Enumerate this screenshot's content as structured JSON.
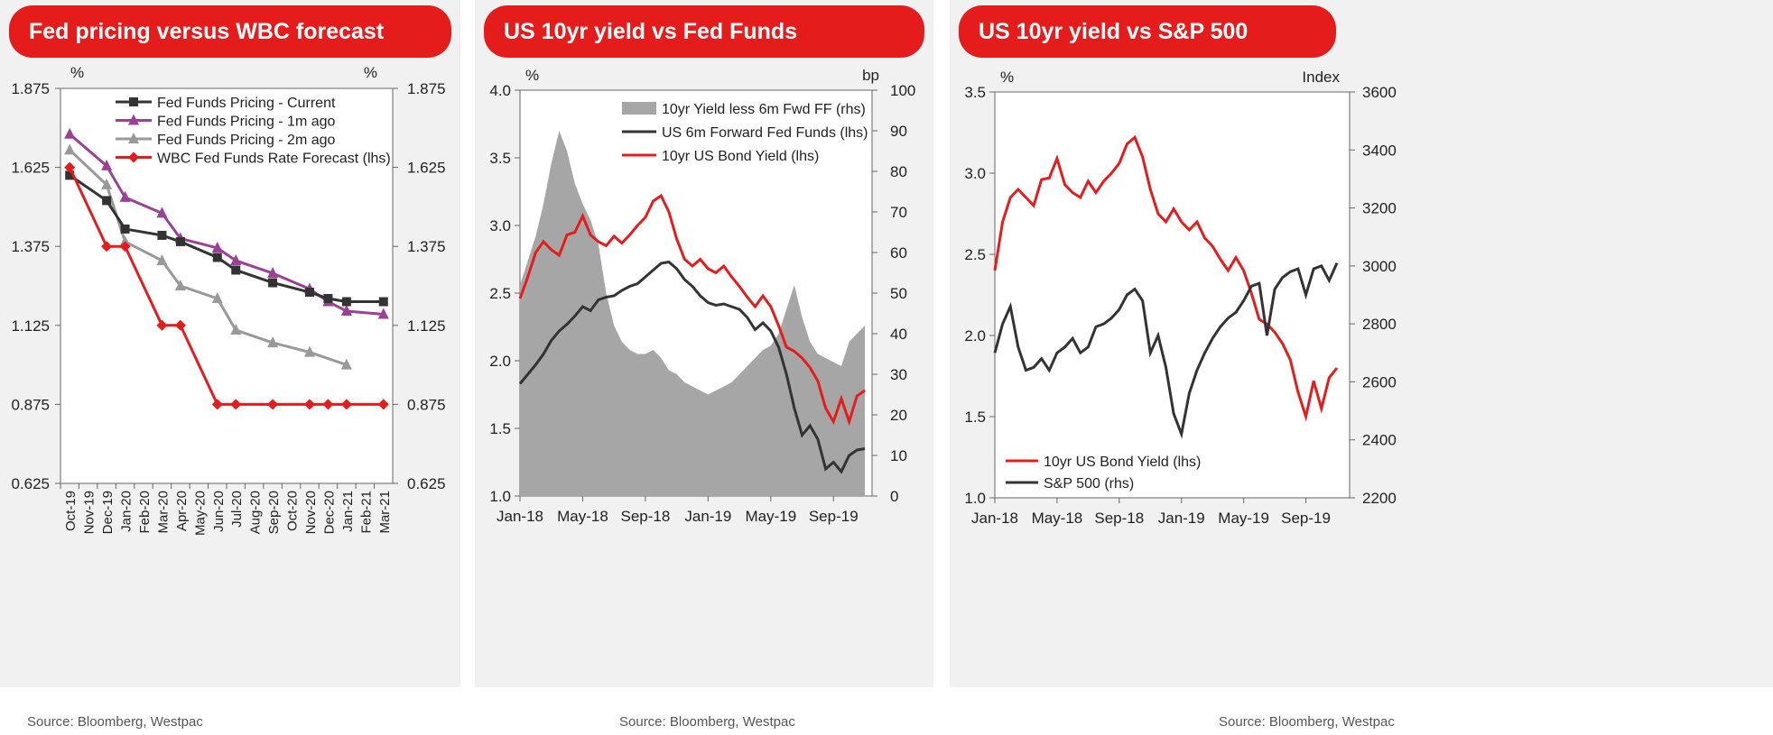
{
  "colors": {
    "header": "#e41c1c",
    "black": "#333333",
    "purple": "#9b4193",
    "grey": "#999999",
    "red": "#e41c1c",
    "area": "#a6a6a6",
    "panel_bg": "#f1f1f1"
  },
  "chart_data": [
    {
      "type": "line",
      "title": "Fed pricing versus WBC forecast",
      "source": "Source: Bloomberg, Westpac",
      "left_unit": "%",
      "right_unit": "%",
      "ylim": [
        0.625,
        1.875
      ],
      "y_ticks": [
        "1.875",
        "1.625",
        "1.375",
        "1.125",
        "0.875",
        "0.625"
      ],
      "y_tick_values": [
        1.875,
        1.625,
        1.375,
        1.125,
        0.875,
        0.625
      ],
      "categories": [
        "Oct-19",
        "Nov-19",
        "Dec-19",
        "Jan-20",
        "Feb-20",
        "Mar-20",
        "Apr-20",
        "May-20",
        "Jun-20",
        "Jul-20",
        "Aug-20",
        "Sep-20",
        "Oct-20",
        "Nov-20",
        "Dec-20",
        "Jan-21",
        "Feb-21",
        "Mar-21"
      ],
      "series": [
        {
          "name": "Fed Funds Pricing - Current",
          "color": "#333333",
          "marker": "square",
          "x": [
            0,
            2,
            3,
            5,
            6,
            8,
            9,
            11,
            13,
            14,
            15,
            17
          ],
          "values": [
            1.6,
            1.52,
            1.43,
            1.41,
            1.39,
            1.34,
            1.3,
            1.26,
            1.23,
            1.21,
            1.2,
            1.2
          ]
        },
        {
          "name": "Fed Funds Pricing - 1m ago",
          "color": "#9b4193",
          "marker": "triangle",
          "x": [
            0,
            2,
            3,
            5,
            6,
            8,
            9,
            11,
            13,
            14,
            15,
            17
          ],
          "values": [
            1.73,
            1.63,
            1.53,
            1.48,
            1.4,
            1.37,
            1.33,
            1.29,
            1.24,
            1.2,
            1.17,
            1.16
          ]
        },
        {
          "name": "Fed Funds Pricing - 2m ago",
          "color": "#999999",
          "marker": "triangle",
          "x": [
            0,
            2,
            3,
            5,
            6,
            8,
            9,
            11,
            13,
            15
          ],
          "values": [
            1.68,
            1.57,
            1.39,
            1.33,
            1.25,
            1.21,
            1.11,
            1.07,
            1.04,
            1.0
          ]
        },
        {
          "name": "WBC Fed Funds Rate Forecast (lhs)",
          "color": "#e41c1c",
          "marker": "diamond",
          "x": [
            0,
            2,
            3,
            5,
            6,
            8,
            9,
            11,
            13,
            14,
            15,
            17
          ],
          "values": [
            1.625,
            1.375,
            1.375,
            1.125,
            1.125,
            0.875,
            0.875,
            0.875,
            0.875,
            0.875,
            0.875,
            0.875
          ]
        }
      ]
    },
    {
      "type": "line",
      "title": "US 10yr yield vs Fed Funds",
      "source": "Source: Bloomberg, Westpac",
      "left_unit": "%",
      "right_unit": "bp",
      "ylim": [
        1.0,
        4.0
      ],
      "y2lim": [
        0,
        100
      ],
      "y_ticks": [
        "4.0",
        "3.5",
        "3.0",
        "2.5",
        "2.0",
        "1.5",
        "1.0"
      ],
      "y2_ticks": [
        "100",
        "90",
        "80",
        "70",
        "60",
        "50",
        "40",
        "30",
        "20",
        "10",
        "0"
      ],
      "x_ticks": [
        "Jan-18",
        "May-18",
        "Sep-18",
        "Jan-19",
        "May-19",
        "Sep-19"
      ],
      "xlim_months": [
        0,
        22
      ],
      "series": [
        {
          "name": "10yr Yield less 6m Fwd FF (rhs)",
          "type": "area",
          "axis": "rhs",
          "color": "#a6a6a6",
          "x": [
            0,
            0.5,
            1,
            1.5,
            2,
            2.5,
            3,
            3.5,
            4,
            4.5,
            5,
            5.5,
            6,
            6.5,
            7,
            7.5,
            8,
            8.5,
            9,
            9.5,
            10,
            10.5,
            11,
            11.5,
            12,
            12.5,
            13,
            13.5,
            14,
            14.5,
            15,
            15.5,
            16,
            16.5,
            17,
            17.5,
            18,
            18.5,
            19,
            19.5,
            20,
            20.5,
            21,
            21.5,
            22
          ],
          "values": [
            52,
            58,
            64,
            72,
            82,
            90,
            85,
            77,
            72,
            68,
            62,
            50,
            42,
            38,
            36,
            35,
            35,
            36,
            34,
            31,
            30,
            28,
            27,
            26,
            25,
            26,
            27,
            28,
            30,
            32,
            34,
            36,
            37,
            40,
            46,
            52,
            44,
            38,
            35,
            34,
            33,
            32,
            38,
            40,
            42
          ]
        },
        {
          "name": "US 6m Forward Fed Funds (lhs)",
          "type": "line",
          "axis": "lhs",
          "color": "#333333",
          "x": [
            0,
            0.5,
            1,
            1.5,
            2,
            2.5,
            3,
            3.5,
            4,
            4.5,
            5,
            5.5,
            6,
            6.5,
            7,
            7.5,
            8,
            8.5,
            9,
            9.5,
            10,
            10.5,
            11,
            11.5,
            12,
            12.5,
            13,
            13.5,
            14,
            14.5,
            15,
            15.5,
            16,
            16.5,
            17,
            17.5,
            18,
            18.5,
            19,
            19.5,
            20,
            20.5,
            21,
            21.5,
            22
          ],
          "values": [
            1.83,
            1.9,
            1.97,
            2.05,
            2.15,
            2.22,
            2.27,
            2.33,
            2.4,
            2.37,
            2.45,
            2.47,
            2.48,
            2.52,
            2.55,
            2.57,
            2.62,
            2.67,
            2.72,
            2.73,
            2.68,
            2.6,
            2.55,
            2.48,
            2.43,
            2.41,
            2.42,
            2.4,
            2.38,
            2.32,
            2.23,
            2.28,
            2.22,
            2.1,
            1.9,
            1.65,
            1.45,
            1.52,
            1.42,
            1.2,
            1.25,
            1.18,
            1.3,
            1.34,
            1.35
          ]
        },
        {
          "name": "10yr US Bond Yield (lhs)",
          "type": "line",
          "axis": "lhs",
          "color": "#e41c1c",
          "x": [
            0,
            0.5,
            1,
            1.5,
            2,
            2.5,
            3,
            3.5,
            4,
            4.5,
            5,
            5.5,
            6,
            6.5,
            7,
            7.5,
            8,
            8.5,
            9,
            9.5,
            10,
            10.5,
            11,
            11.5,
            12,
            12.5,
            13,
            13.5,
            14,
            14.5,
            15,
            15.5,
            16,
            16.5,
            17,
            17.5,
            18,
            18.5,
            19,
            19.5,
            20,
            20.5,
            21,
            21.5,
            22
          ],
          "values": [
            2.46,
            2.62,
            2.8,
            2.88,
            2.82,
            2.78,
            2.93,
            2.95,
            3.07,
            2.93,
            2.88,
            2.85,
            2.92,
            2.87,
            2.93,
            3.0,
            3.06,
            3.18,
            3.22,
            3.1,
            2.9,
            2.75,
            2.7,
            2.75,
            2.68,
            2.65,
            2.7,
            2.62,
            2.55,
            2.47,
            2.4,
            2.48,
            2.4,
            2.26,
            2.1,
            2.07,
            2.02,
            1.95,
            1.85,
            1.65,
            1.55,
            1.72,
            1.55,
            1.74,
            1.78
          ]
        }
      ]
    },
    {
      "type": "line",
      "title": "US 10yr yield vs S&P 500",
      "source": "Source: Bloomberg, Westpac",
      "left_unit": "%",
      "right_unit": "Index",
      "ylim": [
        1.0,
        3.5
      ],
      "y2lim": [
        2200,
        3600
      ],
      "y_ticks": [
        "3.5",
        "3.0",
        "2.5",
        "2.0",
        "1.5",
        "1.0"
      ],
      "y2_ticks": [
        "3600",
        "3400",
        "3200",
        "3000",
        "2800",
        "2600",
        "2400",
        "2200"
      ],
      "x_ticks": [
        "Jan-18",
        "May-18",
        "Sep-18",
        "Jan-19",
        "May-19",
        "Sep-19"
      ],
      "xlim_months": [
        0,
        22
      ],
      "series": [
        {
          "name": "10yr US Bond Yield (lhs)",
          "axis": "lhs",
          "color": "#e41c1c",
          "x": [
            0,
            0.5,
            1,
            1.5,
            2,
            2.5,
            3,
            3.5,
            4,
            4.5,
            5,
            5.5,
            6,
            6.5,
            7,
            7.5,
            8,
            8.5,
            9,
            9.5,
            10,
            10.5,
            11,
            11.5,
            12,
            12.5,
            13,
            13.5,
            14,
            14.5,
            15,
            15.5,
            16,
            16.5,
            17,
            17.5,
            18,
            18.5,
            19,
            19.5,
            20,
            20.5,
            21,
            21.5,
            22
          ],
          "values": [
            2.4,
            2.7,
            2.85,
            2.9,
            2.85,
            2.8,
            2.96,
            2.97,
            3.09,
            2.93,
            2.88,
            2.85,
            2.95,
            2.88,
            2.95,
            3.0,
            3.06,
            3.18,
            3.22,
            3.1,
            2.9,
            2.75,
            2.7,
            2.78,
            2.7,
            2.65,
            2.7,
            2.6,
            2.55,
            2.47,
            2.4,
            2.48,
            2.4,
            2.26,
            2.1,
            2.07,
            2.02,
            1.95,
            1.85,
            1.65,
            1.5,
            1.72,
            1.55,
            1.74,
            1.8
          ]
        },
        {
          "name": "S&P 500 (rhs)",
          "axis": "rhs",
          "color": "#333333",
          "x": [
            0,
            0.5,
            1,
            1.5,
            2,
            2.5,
            3,
            3.5,
            4,
            4.5,
            5,
            5.5,
            6,
            6.5,
            7,
            7.5,
            8,
            8.5,
            9,
            9.5,
            10,
            10.5,
            11,
            11.5,
            12,
            12.5,
            13,
            13.5,
            14,
            14.5,
            15,
            15.5,
            16,
            16.5,
            17,
            17.5,
            18,
            18.5,
            19,
            19.5,
            20,
            20.5,
            21,
            21.5,
            22
          ],
          "values": [
            2700,
            2800,
            2860,
            2720,
            2640,
            2650,
            2680,
            2640,
            2700,
            2720,
            2750,
            2700,
            2720,
            2790,
            2800,
            2820,
            2850,
            2900,
            2920,
            2880,
            2700,
            2760,
            2650,
            2490,
            2420,
            2560,
            2640,
            2700,
            2750,
            2790,
            2820,
            2840,
            2880,
            2930,
            2940,
            2760,
            2920,
            2960,
            2980,
            2990,
            2900,
            2990,
            3000,
            2950,
            3010
          ]
        }
      ]
    }
  ],
  "panels": [
    {
      "title": "Fed pricing versus WBC forecast",
      "source": "Source: Bloomberg, Westpac"
    },
    {
      "title": "US 10yr yield vs Fed Funds",
      "source": "Source: Bloomberg, Westpac"
    },
    {
      "title": "US 10yr yield vs S&P 500",
      "source": "Source: Bloomberg, Westpac"
    }
  ]
}
